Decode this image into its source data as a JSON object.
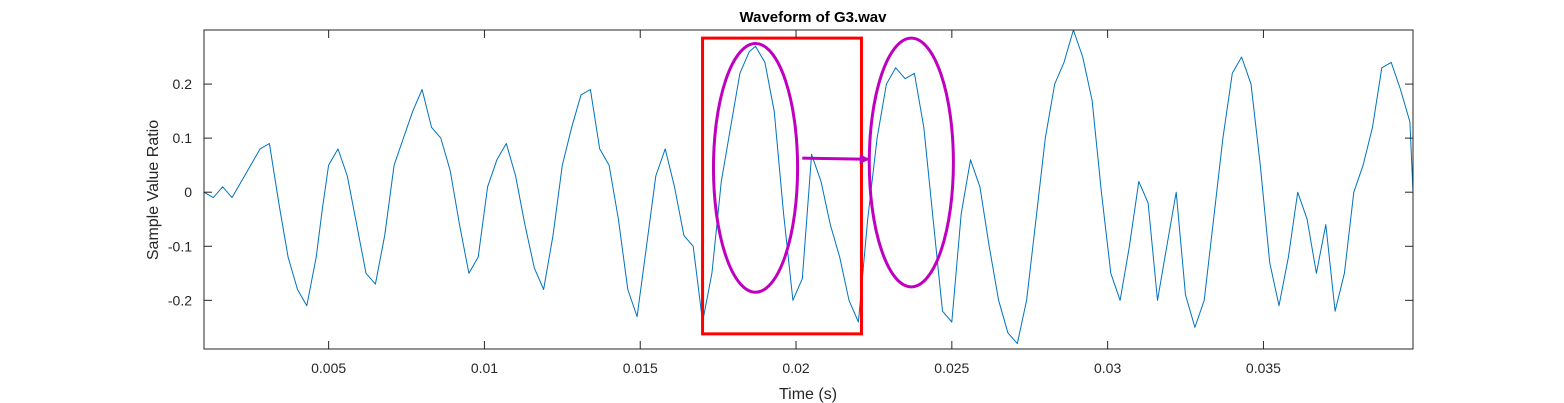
{
  "chart_data": {
    "type": "line",
    "title": "Waveform of G3.wav",
    "xlabel": "Time (s)",
    "ylabel": "Sample Value Ratio",
    "xlim": [
      0.001,
      0.0398
    ],
    "ylim": [
      -0.29,
      0.3
    ],
    "grid": false,
    "xticks": [
      {
        "value": 0.005,
        "label": "0.005"
      },
      {
        "value": 0.01,
        "label": "0.01"
      },
      {
        "value": 0.015,
        "label": "0.015"
      },
      {
        "value": 0.02,
        "label": "0.02"
      },
      {
        "value": 0.025,
        "label": "0.025"
      },
      {
        "value": 0.03,
        "label": "0.03"
      },
      {
        "value": 0.035,
        "label": "0.035"
      }
    ],
    "yticks": [
      {
        "value": 0.2,
        "label": "0.2"
      },
      {
        "value": 0.1,
        "label": "0.1"
      },
      {
        "value": 0,
        "label": "0"
      },
      {
        "value": -0.1,
        "label": "-0.1"
      },
      {
        "value": -0.2,
        "label": "-0.2"
      }
    ],
    "series": [
      {
        "color": "#0072BD",
        "x": [
          0.001,
          0.0013,
          0.0016,
          0.0019,
          0.0022,
          0.0025,
          0.0028,
          0.0031,
          0.0034,
          0.0037,
          0.004,
          0.0043,
          0.0046,
          0.0048,
          0.005,
          0.0053,
          0.0056,
          0.0059,
          0.0062,
          0.0065,
          0.0068,
          0.0071,
          0.0074,
          0.0077,
          0.008,
          0.0083,
          0.0086,
          0.0089,
          0.0092,
          0.0095,
          0.0098,
          0.0101,
          0.0104,
          0.0107,
          0.011,
          0.0113,
          0.0116,
          0.0119,
          0.0122,
          0.0125,
          0.0128,
          0.0131,
          0.0134,
          0.0137,
          0.014,
          0.0143,
          0.0146,
          0.0149,
          0.0152,
          0.0155,
          0.0158,
          0.0161,
          0.0164,
          0.0167,
          0.017,
          0.0173,
          0.0176,
          0.0179,
          0.0182,
          0.0185,
          0.0187,
          0.019,
          0.0193,
          0.0196,
          0.0199,
          0.0202,
          0.0205,
          0.0208,
          0.0211,
          0.0214,
          0.0217,
          0.022,
          0.0223,
          0.0226,
          0.0229,
          0.0232,
          0.0235,
          0.0238,
          0.0241,
          0.0244,
          0.0247,
          0.025,
          0.0253,
          0.0256,
          0.0259,
          0.0262,
          0.0265,
          0.0268,
          0.0271,
          0.0274,
          0.0277,
          0.028,
          0.0283,
          0.0286,
          0.0289,
          0.0292,
          0.0295,
          0.0298,
          0.0301,
          0.0304,
          0.0307,
          0.031,
          0.0313,
          0.0316,
          0.0319,
          0.0322,
          0.0325,
          0.0328,
          0.0331,
          0.0334,
          0.0337,
          0.034,
          0.0343,
          0.0346,
          0.0349,
          0.0352,
          0.0355,
          0.0358,
          0.0361,
          0.0364,
          0.0367,
          0.037,
          0.0373,
          0.0376,
          0.0379,
          0.0382,
          0.0385,
          0.0388,
          0.0391,
          0.0394,
          0.0397,
          0.0398
        ],
        "y": [
          0.0,
          -0.01,
          0.01,
          -0.01,
          0.02,
          0.05,
          0.08,
          0.09,
          -0.02,
          -0.12,
          -0.18,
          -0.21,
          -0.12,
          -0.03,
          0.05,
          0.08,
          0.03,
          -0.06,
          -0.15,
          -0.17,
          -0.08,
          0.05,
          0.1,
          0.15,
          0.19,
          0.12,
          0.1,
          0.04,
          -0.06,
          -0.15,
          -0.12,
          0.01,
          0.06,
          0.09,
          0.03,
          -0.06,
          -0.14,
          -0.18,
          -0.08,
          0.05,
          0.12,
          0.18,
          0.19,
          0.08,
          0.05,
          -0.05,
          -0.18,
          -0.23,
          -0.1,
          0.03,
          0.08,
          0.01,
          -0.08,
          -0.1,
          -0.24,
          -0.15,
          0.02,
          0.12,
          0.22,
          0.26,
          0.27,
          0.24,
          0.15,
          -0.04,
          -0.2,
          -0.16,
          0.07,
          0.02,
          -0.06,
          -0.12,
          -0.2,
          -0.24,
          -0.05,
          0.1,
          0.2,
          0.23,
          0.21,
          0.22,
          0.12,
          -0.05,
          -0.22,
          -0.24,
          -0.04,
          0.06,
          0.01,
          -0.1,
          -0.2,
          -0.26,
          -0.28,
          -0.2,
          -0.05,
          0.1,
          0.2,
          0.24,
          0.3,
          0.25,
          0.17,
          0.0,
          -0.15,
          -0.2,
          -0.1,
          0.02,
          -0.02,
          -0.2,
          -0.1,
          0.0,
          -0.19,
          -0.25,
          -0.2,
          -0.05,
          0.1,
          0.22,
          0.25,
          0.2,
          0.05,
          -0.13,
          -0.21,
          -0.12,
          0.0,
          -0.05,
          -0.15,
          -0.06,
          -0.22,
          -0.15,
          0.0,
          0.05,
          0.12,
          0.23,
          0.24,
          0.19,
          0.13,
          0.0
        ]
      }
    ],
    "annotations": [
      {
        "kind": "rectangle",
        "color": "#FF0000",
        "x": [
          0.017,
          0.0221
        ],
        "y": [
          -0.262,
          0.285
        ]
      },
      {
        "kind": "ellipse",
        "color": "#C000C0",
        "cx": 0.0187,
        "cy": 0.045,
        "rx": 0.00135,
        "ry": 0.23
      },
      {
        "kind": "ellipse",
        "color": "#C000C0",
        "cx": 0.0237,
        "cy": 0.055,
        "rx": 0.00135,
        "ry": 0.23
      },
      {
        "kind": "arrow",
        "color": "#C000C0",
        "from": [
          0.0202,
          0.063
        ],
        "to": [
          0.0223,
          0.061
        ]
      }
    ]
  }
}
